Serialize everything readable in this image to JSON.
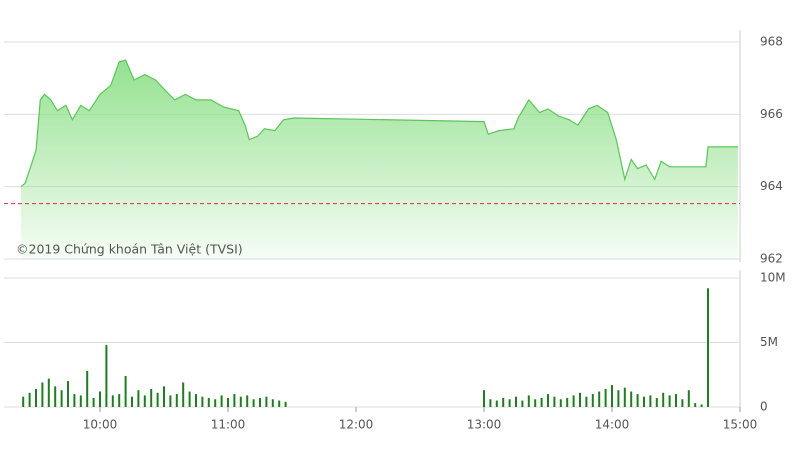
{
  "chart_data": [
    {
      "type": "line",
      "color": "#5cc55a",
      "fill_color": "#8fe08a",
      "annotation": "©2019 Chứng khoán Tân Việt (TVSI)",
      "x": [
        "09:23",
        "09:25",
        "09:30",
        "09:32",
        "09:34",
        "09:37",
        "09:40",
        "09:44",
        "09:47",
        "09:51",
        "09:55",
        "10:00",
        "10:05",
        "10:09",
        "10:12",
        "10:16",
        "10:21",
        "10:26",
        "10:30",
        "10:35",
        "10:40",
        "10:45",
        "10:52",
        "10:58",
        "11:05",
        "11:08",
        "11:10",
        "11:14",
        "11:17",
        "11:22",
        "11:26",
        "11:31",
        "13:00",
        "13:02",
        "13:07",
        "13:14",
        "13:16",
        "13:21",
        "13:26",
        "13:30",
        "13:35",
        "13:40",
        "13:44",
        "13:49",
        "13:53",
        "13:58",
        "14:02",
        "14:06",
        "14:09",
        "14:12",
        "14:16",
        "14:20",
        "14:23",
        "14:27",
        "14:44",
        "14:45",
        "14:59"
      ],
      "values": [
        964.0,
        964.1,
        965.0,
        966.4,
        966.55,
        966.4,
        966.1,
        966.25,
        965.85,
        966.25,
        966.1,
        966.55,
        966.8,
        967.45,
        967.5,
        966.95,
        967.1,
        966.95,
        966.7,
        966.4,
        966.55,
        966.4,
        966.4,
        966.2,
        966.1,
        965.7,
        965.3,
        965.4,
        965.6,
        965.55,
        965.85,
        965.9,
        965.8,
        965.45,
        965.55,
        965.6,
        965.9,
        966.4,
        966.05,
        966.15,
        965.95,
        965.85,
        965.7,
        966.15,
        966.25,
        966.05,
        965.3,
        964.2,
        964.75,
        964.5,
        964.6,
        964.2,
        964.7,
        964.55,
        964.55,
        965.1,
        965.1
      ],
      "reference_value": 963.53,
      "reference_color": "#e03030",
      "xlim": [
        "09:15",
        "15:00"
      ],
      "ylim": [
        962,
        968
      ],
      "yticks": [
        962,
        964,
        966,
        968
      ],
      "grid": true
    },
    {
      "type": "bar",
      "color": "#1f7d1f",
      "x": [
        "09:24",
        "09:27",
        "09:30",
        "09:33",
        "09:36",
        "09:39",
        "09:42",
        "09:45",
        "09:48",
        "09:51",
        "09:54",
        "09:57",
        "10:00",
        "10:03",
        "10:06",
        "10:09",
        "10:12",
        "10:15",
        "10:18",
        "10:21",
        "10:24",
        "10:27",
        "10:30",
        "10:33",
        "10:36",
        "10:39",
        "10:42",
        "10:45",
        "10:48",
        "10:51",
        "10:54",
        "10:57",
        "11:00",
        "11:03",
        "11:06",
        "11:09",
        "11:12",
        "11:15",
        "11:18",
        "11:21",
        "11:24",
        "11:27",
        "13:00",
        "13:03",
        "13:06",
        "13:09",
        "13:12",
        "13:15",
        "13:18",
        "13:21",
        "13:24",
        "13:27",
        "13:30",
        "13:33",
        "13:36",
        "13:39",
        "13:42",
        "13:45",
        "13:48",
        "13:51",
        "13:54",
        "13:57",
        "14:00",
        "14:03",
        "14:06",
        "14:09",
        "14:12",
        "14:15",
        "14:18",
        "14:21",
        "14:24",
        "14:27",
        "14:30",
        "14:33",
        "14:36",
        "14:39",
        "14:42",
        "14:45"
      ],
      "values": [
        0.8,
        1.1,
        1.4,
        1.9,
        2.2,
        1.6,
        1.3,
        2.0,
        1.0,
        0.9,
        2.8,
        0.7,
        1.2,
        4.8,
        0.9,
        1.0,
        2.4,
        0.8,
        1.3,
        0.9,
        1.4,
        1.1,
        1.6,
        0.9,
        1.0,
        1.9,
        1.2,
        1.0,
        0.8,
        0.7,
        0.6,
        0.9,
        0.7,
        1.0,
        0.8,
        0.9,
        0.6,
        0.7,
        0.8,
        0.6,
        0.5,
        0.4,
        1.3,
        0.6,
        0.5,
        0.7,
        0.6,
        0.8,
        0.5,
        0.9,
        0.6,
        0.7,
        1.0,
        0.8,
        0.6,
        0.7,
        0.9,
        1.1,
        0.8,
        1.0,
        1.2,
        1.4,
        1.7,
        1.3,
        1.5,
        1.2,
        1.0,
        0.8,
        0.9,
        0.7,
        1.1,
        0.9,
        1.0,
        0.6,
        1.3,
        0.3,
        0.2,
        9.2
      ],
      "xlim": [
        "09:15",
        "15:00"
      ],
      "xticks": [
        "10:00",
        "11:00",
        "12:00",
        "13:00",
        "14:00",
        "15:00"
      ],
      "ylim": [
        0,
        10
      ],
      "yticks": [
        0,
        {
          "value": 5,
          "label": "5M"
        },
        {
          "value": 10,
          "label": "10M"
        }
      ],
      "grid": true
    }
  ]
}
